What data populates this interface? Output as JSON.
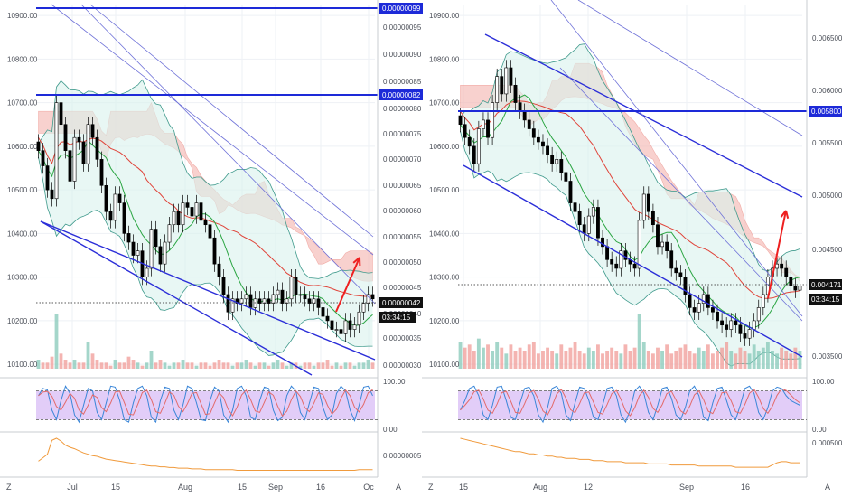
{
  "colors": {
    "background": "#ffffff",
    "grid": "#eef1f5",
    "axis_text": "#4b4f58",
    "channel": "#2b2ed8",
    "thin_channel": "#6f72d8",
    "cloud": "#f4b8b3",
    "cloud_green": "#bde8cf",
    "bb_fill": "#d9f2ec",
    "bb_line": "#3f9a8c",
    "ma_red": "#e0443a",
    "ma_green": "#2aa542",
    "volume_up": "#85c8b8",
    "volume_down": "#f09b97",
    "stoch_band": "#d6b8f5",
    "stoch_k": "#3a86d8",
    "stoch_d": "#e36a6a",
    "lower_ind": "#f09a3c",
    "arrow": "#ee2020",
    "label_bg": "#111111",
    "label_text": "#ffffff",
    "label_blue_bg": "#1d2ad8"
  },
  "icons": {
    "z_button": "Z",
    "alert_button": "A"
  },
  "chart_data": [
    {
      "type": "candlestick",
      "title": "",
      "price_axis_left": {
        "ticks": [
          "10900.00",
          "10800.00",
          "10700.00",
          "10600.00",
          "10500.00",
          "10400.00",
          "10300.00",
          "10200.00",
          "10100.00"
        ],
        "ylim": [
          10090,
          10925
        ]
      },
      "price_axis_right": {
        "ticks": [
          "0.00000095",
          "0.00000090",
          "0.00000085",
          "0.00000080",
          "0.00000075",
          "0.00000070",
          "0.00000065",
          "0.00000060",
          "0.00000055",
          "0.00000050",
          "0.00000045",
          "0.00000040",
          "0.00000035",
          "0.00000030"
        ],
        "highlight_labels": [
          "0.00000099",
          "0.00000082"
        ],
        "current_price": "0.00000042",
        "countdown": "03:34:15"
      },
      "oscillator_axis": {
        "ticks": [
          "100.00",
          "0.00"
        ],
        "band": [
          20,
          80
        ]
      },
      "lower_axis": {
        "ticks": [
          "0.00000005"
        ]
      },
      "time_axis": {
        "ticks": [
          "Jul",
          "15",
          "Aug",
          "15",
          "Sep",
          "16",
          "Oc"
        ]
      },
      "close": [
        10590,
        10555,
        10500,
        10480,
        10700,
        10650,
        10590,
        10520,
        10620,
        10610,
        10560,
        10650,
        10620,
        10570,
        10510,
        10450,
        10430,
        10490,
        10470,
        10400,
        10380,
        10350,
        10360,
        10300,
        10320,
        10410,
        10370,
        10330,
        10380,
        10420,
        10450,
        10420,
        10470,
        10460,
        10440,
        10470,
        10430,
        10420,
        10390,
        10330,
        10300,
        10260,
        10220,
        10250,
        10240,
        10250,
        10260,
        10230,
        10250,
        10240,
        10250,
        10240,
        10260,
        10270,
        10240,
        10250,
        10300,
        10260,
        10260,
        10250,
        10240,
        10250,
        10230,
        10210,
        10200,
        10180,
        10180,
        10170,
        10200,
        10180,
        10190,
        10220,
        10240,
        10260,
        10250
      ],
      "vol": [
        3,
        2,
        2,
        4,
        18,
        5,
        3,
        2,
        3,
        2,
        2,
        9,
        5,
        3,
        2,
        2,
        1,
        3,
        2,
        2,
        4,
        3,
        2,
        1,
        2,
        6,
        2,
        3,
        2,
        1,
        2,
        2,
        3,
        2,
        2,
        1,
        2,
        2,
        1,
        2,
        3,
        2,
        2,
        1,
        2,
        2,
        3,
        2,
        1,
        2,
        2,
        1,
        2,
        3,
        2,
        1,
        2,
        2,
        1,
        2,
        2,
        1,
        2,
        2,
        3,
        1,
        2,
        1,
        2,
        2,
        1,
        2,
        2,
        3,
        2
      ],
      "stoch_k": [
        70,
        85,
        82,
        40,
        20,
        60,
        90,
        75,
        30,
        15,
        50,
        85,
        80,
        35,
        20,
        55,
        90,
        88,
        60,
        20,
        15,
        55,
        85,
        90,
        70,
        25,
        15,
        60,
        88,
        85,
        40,
        20,
        50,
        90,
        85,
        55,
        20,
        18,
        60,
        88,
        80,
        30,
        15,
        40,
        85,
        90,
        70,
        25,
        20,
        60,
        88,
        85,
        40,
        18,
        25,
        70,
        90,
        80,
        35,
        20,
        55,
        88,
        85,
        45,
        20,
        30,
        75,
        90,
        80,
        40,
        18,
        50,
        88,
        90,
        70
      ],
      "lower": [
        15,
        20,
        25,
        45,
        48,
        44,
        38,
        35,
        33,
        30,
        27,
        25,
        23,
        22,
        20,
        18,
        17,
        16,
        15,
        14,
        13,
        12,
        11,
        10,
        9,
        8,
        8,
        7,
        7,
        6,
        6,
        5,
        5,
        5,
        4,
        4,
        4,
        3,
        3,
        3,
        3,
        3,
        3,
        3,
        2,
        2,
        2,
        2,
        2,
        2,
        2,
        2,
        2,
        2,
        2,
        2,
        2,
        2,
        2,
        2,
        2,
        2,
        2,
        2,
        2,
        2,
        2,
        2,
        2,
        2,
        2,
        3,
        3,
        3,
        3
      ]
    },
    {
      "type": "candlestick",
      "title": "",
      "price_axis_left": {
        "ticks": [
          "10900.00",
          "10800.00",
          "10700.00",
          "10600.00",
          "10500.00",
          "10400.00",
          "10300.00",
          "10200.00",
          "10100.00"
        ],
        "ylim": [
          10090,
          10925
        ]
      },
      "price_axis_right": {
        "ticks": [
          "0.006500",
          "0.006000",
          "0.005500",
          "0.005000",
          "0.004500",
          "0.003500"
        ],
        "highlight_labels": [
          "0.005800"
        ],
        "current_price": "0.004171",
        "countdown": "03:34:15"
      },
      "oscillator_axis": {
        "ticks": [
          "100.00",
          "0.00"
        ],
        "band": [
          20,
          80
        ]
      },
      "lower_axis": {
        "ticks": [
          "0.000500"
        ]
      },
      "time_axis": {
        "ticks": [
          "15",
          "Aug",
          "12",
          "Sep",
          "16"
        ]
      },
      "close": [
        10650,
        10620,
        10600,
        10560,
        10640,
        10660,
        10620,
        10700,
        10760,
        10720,
        10780,
        10740,
        10700,
        10680,
        10660,
        10640,
        10620,
        10610,
        10600,
        10580,
        10560,
        10570,
        10540,
        10520,
        10470,
        10450,
        10420,
        10400,
        10440,
        10460,
        10390,
        10370,
        10340,
        10330,
        10320,
        10360,
        10340,
        10330,
        10320,
        10430,
        10490,
        10450,
        10420,
        10370,
        10380,
        10360,
        10320,
        10310,
        10300,
        10260,
        10230,
        10220,
        10240,
        10260,
        10230,
        10220,
        10200,
        10190,
        10180,
        10200,
        10190,
        10170,
        10160,
        10180,
        10200,
        10230,
        10260,
        10300,
        10320,
        10330,
        10320,
        10300,
        10280,
        10270,
        10280
      ],
      "vol": [
        9,
        7,
        8,
        6,
        10,
        7,
        8,
        6,
        9,
        7,
        5,
        8,
        6,
        7,
        6,
        8,
        9,
        5,
        6,
        7,
        6,
        5,
        8,
        6,
        7,
        9,
        6,
        5,
        7,
        6,
        8,
        5,
        6,
        7,
        6,
        5,
        8,
        6,
        7,
        18,
        9,
        6,
        5,
        7,
        6,
        8,
        5,
        6,
        7,
        8,
        6,
        5,
        7,
        6,
        8,
        5,
        6,
        7,
        9,
        6,
        5,
        7,
        6,
        5,
        8,
        6,
        7,
        9,
        6,
        5,
        7,
        6,
        5,
        7,
        6
      ],
      "stoch_k": [
        40,
        60,
        85,
        90,
        70,
        30,
        20,
        50,
        88,
        90,
        60,
        25,
        20,
        55,
        85,
        88,
        70,
        30,
        15,
        45,
        85,
        90,
        75,
        30,
        18,
        55,
        88,
        85,
        60,
        25,
        20,
        50,
        85,
        88,
        70,
        30,
        15,
        40,
        80,
        90,
        75,
        35,
        20,
        50,
        85,
        88,
        65,
        30,
        20,
        45,
        80,
        90,
        70,
        25,
        18,
        55,
        85,
        88,
        60,
        30,
        20,
        50,
        85,
        90,
        75,
        35,
        20,
        45,
        80,
        88,
        85,
        70,
        60,
        55,
        50
      ],
      "lower": [
        30,
        29,
        28,
        27,
        26,
        25,
        24,
        23,
        22,
        21,
        20,
        19,
        18,
        18,
        17,
        16,
        16,
        15,
        15,
        14,
        14,
        13,
        13,
        12,
        12,
        12,
        11,
        11,
        11,
        10,
        10,
        10,
        9,
        9,
        9,
        9,
        8,
        8,
        8,
        8,
        8,
        7,
        7,
        7,
        7,
        7,
        6,
        6,
        6,
        6,
        6,
        6,
        5,
        5,
        5,
        5,
        5,
        5,
        5,
        5,
        4,
        4,
        4,
        4,
        4,
        4,
        4,
        4,
        6,
        8,
        9,
        9,
        8,
        8,
        8
      ]
    }
  ]
}
